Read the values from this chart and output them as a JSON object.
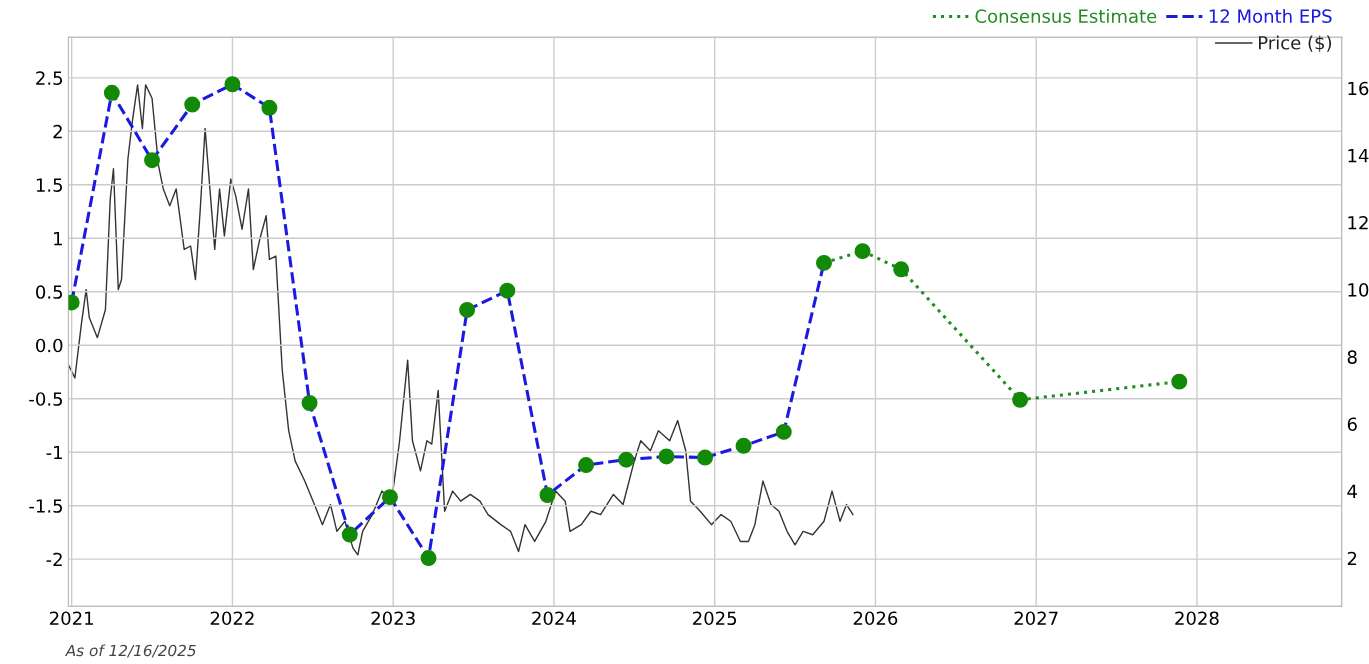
{
  "chart_data": {
    "type": "line",
    "xlim": [
      2020.98,
      2028.9
    ],
    "xticks": [
      2021,
      2022,
      2023,
      2024,
      2025,
      2026,
      2027,
      2028
    ],
    "ylim": [
      -2.44,
      2.88
    ],
    "yticks": [
      {
        "value": 2.5,
        "label": "2.5"
      },
      2,
      {
        "value": 1.5,
        "label": "1.5"
      },
      1,
      {
        "value": 0.5,
        "label": "0.5"
      },
      {
        "value": 0,
        "label": "0.0"
      },
      {
        "value": -0.5,
        "label": "-0.5"
      },
      {
        "value": -1,
        "label": "-1"
      },
      {
        "value": -1.5,
        "label": "-1.5"
      },
      {
        "value": -2,
        "label": "-2"
      }
    ],
    "y2lim": [
      0.57,
      17.52
    ],
    "y2ticks": [
      2,
      4,
      6,
      8,
      10,
      12,
      14,
      16
    ],
    "grid": true,
    "legend": "top right",
    "annotations": [
      "As of 12/16/2025"
    ],
    "series": [
      {
        "name": "Consensus Estimate",
        "color": "#228b22",
        "line_style": "dotted",
        "x": [
          2025.68,
          2025.92,
          2026.16,
          2026.9,
          2027.89
        ],
        "values": [
          0.77,
          0.88,
          0.71,
          -0.51,
          -0.34
        ]
      },
      {
        "name": "12 Month EPS",
        "color": "#1a1ae0",
        "line_style": "dashed",
        "x": [
          2021.0,
          2021.25,
          2021.5,
          2021.75,
          2022.0,
          2022.23,
          2022.48,
          2022.73,
          2022.98,
          2023.22,
          2023.46,
          2023.71,
          2023.96,
          2024.2,
          2024.45,
          2024.7,
          2024.94,
          2025.18,
          2025.43,
          2025.68
        ],
        "values": [
          0.4,
          2.36,
          1.73,
          2.25,
          2.44,
          2.22,
          -0.54,
          -1.77,
          -1.42,
          -1.99,
          0.33,
          0.51,
          -1.4,
          -1.12,
          -1.07,
          -1.04,
          -1.05,
          -0.94,
          -0.81,
          0.77
        ]
      },
      {
        "name": "Price ($)",
        "axis": "y2",
        "color": "#333333",
        "line_style": "solid",
        "x": [
          2020.98,
          2021.02,
          2021.06,
          2021.09,
          2021.11,
          2021.16,
          2021.21,
          2021.24,
          2021.26,
          2021.29,
          2021.31,
          2021.35,
          2021.38,
          2021.41,
          2021.44,
          2021.46,
          2021.5,
          2021.54,
          2021.57,
          2021.61,
          2021.65,
          2021.7,
          2021.74,
          2021.77,
          2021.8,
          2021.83,
          2021.86,
          2021.89,
          2021.92,
          2021.95,
          2021.99,
          2022.02,
          2022.06,
          2022.1,
          2022.13,
          2022.17,
          2022.21,
          2022.23,
          2022.27,
          2022.31,
          2022.35,
          2022.39,
          2022.45,
          2022.51,
          2022.56,
          2022.61,
          2022.65,
          2022.7,
          2022.75,
          2022.78,
          2022.81,
          2022.87,
          2022.93,
          2022.99,
          2023.04,
          2023.09,
          2023.12,
          2023.17,
          2023.21,
          2023.24,
          2023.28,
          2023.32,
          2023.37,
          2023.42,
          2023.48,
          2023.54,
          2023.59,
          2023.67,
          2023.73,
          2023.78,
          2023.82,
          2023.88,
          2023.95,
          2024.01,
          2024.07,
          2024.1,
          2024.17,
          2024.23,
          2024.29,
          2024.37,
          2024.43,
          2024.5,
          2024.54,
          2024.6,
          2024.65,
          2024.72,
          2024.77,
          2024.82,
          2024.85,
          2024.91,
          2024.98,
          2025.04,
          2025.1,
          2025.16,
          2025.21,
          2025.25,
          2025.3,
          2025.35,
          2025.4,
          2025.45,
          2025.5,
          2025.55,
          2025.61,
          2025.68,
          2025.73,
          2025.78,
          2025.82,
          2025.86
        ],
        "values": [
          7.76,
          7.37,
          8.96,
          10.0,
          9.16,
          8.57,
          9.4,
          12.7,
          13.6,
          10.0,
          10.3,
          13.9,
          15.1,
          16.1,
          14.8,
          16.1,
          15.7,
          13.7,
          13.0,
          12.5,
          13.0,
          11.2,
          11.3,
          10.3,
          12.4,
          14.8,
          13.0,
          11.2,
          13.0,
          11.6,
          13.3,
          12.8,
          11.8,
          13.0,
          10.6,
          11.5,
          12.2,
          10.9,
          11.0,
          7.6,
          5.8,
          4.9,
          4.3,
          3.6,
          3.0,
          3.6,
          2.8,
          3.1,
          2.3,
          2.1,
          2.8,
          3.3,
          4.0,
          3.7,
          5.5,
          7.9,
          5.5,
          4.6,
          5.5,
          5.4,
          7.0,
          3.4,
          4.0,
          3.7,
          3.9,
          3.7,
          3.3,
          3.0,
          2.8,
          2.2,
          3.0,
          2.5,
          3.1,
          4.0,
          3.7,
          2.8,
          3.0,
          3.4,
          3.3,
          3.9,
          3.6,
          4.9,
          5.5,
          5.2,
          5.8,
          5.5,
          6.1,
          5.2,
          3.7,
          3.4,
          3.0,
          3.3,
          3.1,
          2.5,
          2.5,
          3.0,
          4.3,
          3.6,
          3.4,
          2.8,
          2.4,
          2.8,
          2.7,
          3.1,
          4.0,
          3.1,
          3.6,
          3.3
        ]
      },
      {
        "type": "scatter",
        "color": "#138a07",
        "marker": "circle",
        "x": [
          2021.0,
          2021.25,
          2021.5,
          2021.75,
          2022.0,
          2022.23,
          2022.48,
          2022.73,
          2022.98,
          2023.22,
          2023.46,
          2023.71,
          2023.96,
          2024.2,
          2024.45,
          2024.7,
          2024.94,
          2025.18,
          2025.43,
          2025.68,
          2025.92,
          2026.16,
          2026.9,
          2027.89
        ],
        "values": [
          0.4,
          2.36,
          1.73,
          2.25,
          2.44,
          2.22,
          -0.54,
          -1.77,
          -1.42,
          -1.99,
          0.33,
          0.51,
          -1.4,
          -1.12,
          -1.07,
          -1.04,
          -1.05,
          -0.94,
          -0.81,
          0.77,
          0.88,
          0.71,
          -0.51,
          -0.34
        ]
      }
    ]
  }
}
